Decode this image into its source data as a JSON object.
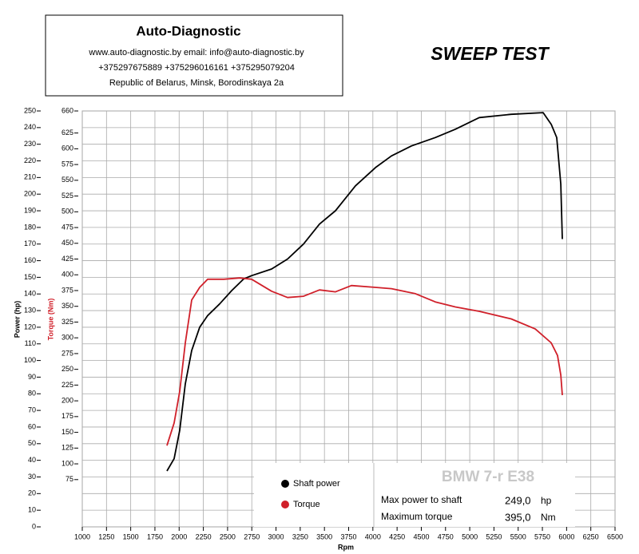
{
  "chart_data": {
    "type": "line",
    "header": {
      "title": "Auto-Diagnostic",
      "line1": "www.auto-diagnostic.by     email: info@auto-diagnostic.by",
      "line2": "+375297675889  +375296016161  +375295079204",
      "line3": "Republic of Belarus, Minsk, Borodinskaya 2a"
    },
    "title": "SWEEP TEST",
    "xlabel": "Rpm",
    "ylabel": "Power (hp)",
    "y2label": "Torque (Nm)",
    "xlim": [
      1000,
      6500
    ],
    "xticks": [
      1000,
      1250,
      1500,
      1750,
      2000,
      2250,
      2500,
      2750,
      3000,
      3250,
      3500,
      3750,
      4000,
      4250,
      4500,
      4750,
      5000,
      5250,
      5500,
      5750,
      6000,
      6250,
      6500
    ],
    "ylim": [
      0,
      250
    ],
    "yticks": [
      0,
      10,
      20,
      30,
      40,
      50,
      60,
      70,
      80,
      90,
      100,
      110,
      120,
      130,
      140,
      150,
      160,
      170,
      180,
      190,
      200,
      210,
      220,
      230,
      240,
      250
    ],
    "y2lim": [
      0,
      660
    ],
    "y2ticks": [
      75,
      100,
      125,
      150,
      175,
      200,
      225,
      250,
      275,
      300,
      325,
      350,
      375,
      400,
      425,
      450,
      475,
      500,
      525,
      550,
      575,
      600,
      625,
      660
    ],
    "grid": true,
    "series": [
      {
        "name": "Shaft power",
        "color": "#000000",
        "axis": "y",
        "x": [
          1874,
          1948,
          2006,
          2064,
          2130,
          2212,
          2295,
          2418,
          2542,
          2666,
          2748,
          2954,
          3119,
          3284,
          3449,
          3614,
          3738,
          3820,
          4027,
          4192,
          4398,
          4645,
          4851,
          5098,
          5428,
          5758,
          5841,
          5898,
          5940,
          5956
        ],
        "values": [
          33.6,
          41,
          58,
          86,
          106,
          120,
          127,
          134,
          142,
          149,
          151,
          155,
          161,
          170,
          182,
          190,
          199,
          205,
          216,
          223,
          229,
          234,
          239,
          246,
          248,
          249,
          242,
          234,
          206,
          173
        ]
      },
      {
        "name": "Torque",
        "color": "#d0202a",
        "axis": "y2",
        "x": [
          1874,
          1948,
          2006,
          2064,
          2130,
          2212,
          2295,
          2460,
          2625,
          2748,
          2954,
          3119,
          3284,
          3449,
          3614,
          3779,
          4027,
          4192,
          4439,
          4645,
          4851,
          5098,
          5428,
          5676,
          5841,
          5906,
          5940,
          5956
        ],
        "values": [
          129,
          165,
          215,
          292,
          360,
          380,
          393,
          393,
          395,
          393,
          374,
          364,
          366,
          376,
          373,
          383,
          380,
          378,
          370,
          357,
          349,
          342,
          330,
          314,
          292,
          272,
          241,
          209
        ]
      }
    ],
    "info": {
      "car": "BMW 7-r E38",
      "max_power_label": "Max power to shaft",
      "max_power": "249,0",
      "power_unit": "hp",
      "max_torque_label": "Maximum torque",
      "max_torque": "395,0",
      "torque_unit": "Nm"
    }
  }
}
